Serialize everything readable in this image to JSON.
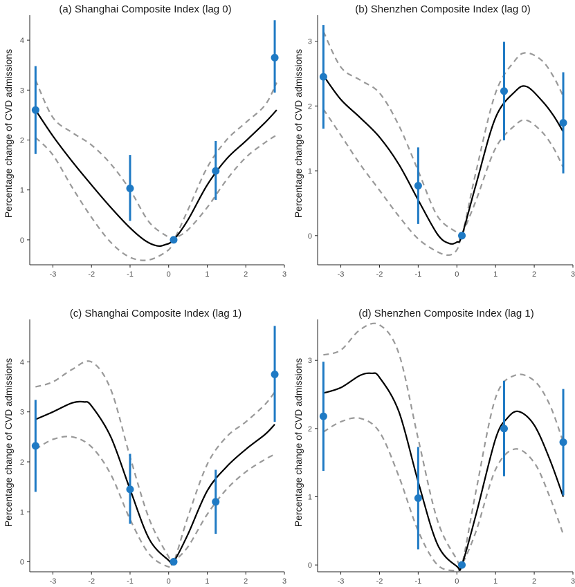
{
  "colors": {
    "fit": "#000000",
    "ci": "#999999",
    "point": "#1f7ac4",
    "axis": "#222222"
  },
  "chart_data": [
    {
      "type": "line",
      "title": "(a) Shanghai Composite Index (lag 0)",
      "ylabel": "Percentage change of CVD admissions",
      "xlim": [
        -3.6,
        3.0
      ],
      "ylim": [
        -0.5,
        4.5
      ],
      "xticks": [
        -3,
        -2,
        -1,
        0,
        1,
        2,
        3
      ],
      "yticks": [
        0,
        1,
        2,
        3,
        4
      ],
      "fit": {
        "x": [
          -3.45,
          -3.0,
          -2.5,
          -2.0,
          -1.5,
          -1.0,
          -0.6,
          -0.3,
          -0.1,
          0.13,
          0.5,
          1.0,
          1.5,
          2.0,
          2.5,
          2.8
        ],
        "y": [
          2.6,
          2.08,
          1.57,
          1.1,
          0.65,
          0.24,
          -0.02,
          -0.12,
          -0.1,
          0.0,
          0.4,
          1.1,
          1.62,
          1.98,
          2.35,
          2.6
        ]
      },
      "ci_upper": {
        "x": [
          -3.45,
          -3.0,
          -2.5,
          -2.0,
          -1.5,
          -1.0,
          -0.5,
          0.0,
          0.13,
          0.5,
          1.0,
          1.5,
          2.0,
          2.5,
          2.8
        ],
        "y": [
          3.2,
          2.45,
          2.15,
          1.9,
          1.52,
          1.0,
          0.35,
          0.05,
          0.0,
          0.6,
          1.45,
          2.0,
          2.35,
          2.7,
          3.15
        ]
      },
      "ci_lower": {
        "x": [
          -3.45,
          -3.0,
          -2.5,
          -2.0,
          -1.5,
          -1.0,
          -0.5,
          0.0,
          0.13,
          0.5,
          1.0,
          1.5,
          2.0,
          2.5,
          2.8
        ],
        "y": [
          2.05,
          1.7,
          1.05,
          0.45,
          -0.05,
          -0.35,
          -0.4,
          -0.2,
          0.0,
          0.2,
          0.65,
          1.2,
          1.65,
          1.95,
          2.1
        ]
      },
      "points": [
        {
          "x": -3.45,
          "y": 2.6,
          "lo": 1.72,
          "hi": 3.48
        },
        {
          "x": -1.0,
          "y": 1.03,
          "lo": 0.38,
          "hi": 1.7
        },
        {
          "x": 0.13,
          "y": 0.0,
          "lo": 0.0,
          "hi": 0.0
        },
        {
          "x": 1.22,
          "y": 1.38,
          "lo": 0.8,
          "hi": 1.98
        },
        {
          "x": 2.75,
          "y": 3.65,
          "lo": 2.95,
          "hi": 4.4
        }
      ]
    },
    {
      "type": "line",
      "title": "(b) Shenzhen Composite Index  (lag 0)",
      "ylabel": "Percentage change of CVD admissions",
      "xlim": [
        -3.6,
        3.0
      ],
      "ylim": [
        -0.45,
        3.4
      ],
      "xticks": [
        -3,
        -2,
        -1,
        0,
        1,
        2,
        3
      ],
      "yticks": [
        0,
        1,
        2,
        3
      ],
      "fit": {
        "x": [
          -3.45,
          -3.0,
          -2.5,
          -2.0,
          -1.5,
          -1.0,
          -0.5,
          -0.2,
          0.0,
          0.13,
          0.5,
          1.0,
          1.5,
          1.8,
          2.2,
          2.5,
          2.75
        ],
        "y": [
          2.47,
          2.1,
          1.82,
          1.52,
          1.1,
          0.55,
          0.02,
          -0.12,
          -0.1,
          0.0,
          0.8,
          1.82,
          2.22,
          2.3,
          2.08,
          1.85,
          1.6
        ]
      },
      "ci_upper": {
        "x": [
          -3.45,
          -3.0,
          -2.5,
          -2.0,
          -1.5,
          -1.0,
          -0.5,
          0.0,
          0.13,
          0.5,
          1.0,
          1.5,
          1.8,
          2.2,
          2.5,
          2.75
        ],
        "y": [
          3.15,
          2.6,
          2.4,
          2.2,
          1.7,
          1.0,
          0.3,
          0.05,
          0.0,
          1.0,
          2.2,
          2.7,
          2.82,
          2.7,
          2.45,
          2.15
        ]
      },
      "ci_lower": {
        "x": [
          -3.45,
          -3.0,
          -2.5,
          -2.0,
          -1.5,
          -1.0,
          -0.5,
          -0.2,
          0.0,
          0.13,
          0.5,
          1.0,
          1.5,
          1.8,
          2.2,
          2.5,
          2.75
        ],
        "y": [
          1.95,
          1.55,
          1.1,
          0.7,
          0.3,
          -0.05,
          -0.25,
          -0.3,
          -0.22,
          0.0,
          0.55,
          1.35,
          1.7,
          1.78,
          1.6,
          1.35,
          1.05
        ]
      },
      "points": [
        {
          "x": -3.45,
          "y": 2.45,
          "lo": 1.65,
          "hi": 3.25
        },
        {
          "x": -1.0,
          "y": 0.77,
          "lo": 0.18,
          "hi": 1.36
        },
        {
          "x": 0.13,
          "y": 0.0,
          "lo": 0.0,
          "hi": 0.0
        },
        {
          "x": 1.22,
          "y": 2.23,
          "lo": 1.47,
          "hi": 2.99
        },
        {
          "x": 2.75,
          "y": 1.74,
          "lo": 0.96,
          "hi": 2.52
        }
      ]
    },
    {
      "type": "line",
      "title": "(c) Shanghai Composite Index (lag 1)",
      "ylabel": "Percentage change of CVD admissions",
      "xlim": [
        -3.6,
        3.0
      ],
      "ylim": [
        -0.2,
        4.85
      ],
      "xticks": [
        -3,
        -2,
        -1,
        0,
        1,
        2,
        3
      ],
      "yticks": [
        0,
        1,
        2,
        3,
        4
      ],
      "fit": {
        "x": [
          -3.45,
          -3.0,
          -2.5,
          -2.2,
          -2.0,
          -1.5,
          -1.0,
          -0.5,
          0.0,
          0.13,
          0.5,
          1.0,
          1.5,
          2.0,
          2.5,
          2.75
        ],
        "y": [
          2.85,
          3.0,
          3.18,
          3.2,
          3.12,
          2.5,
          1.45,
          0.45,
          0.03,
          0.0,
          0.55,
          1.42,
          1.9,
          2.25,
          2.55,
          2.75
        ]
      },
      "ci_upper": {
        "x": [
          -3.45,
          -3.0,
          -2.5,
          -2.0,
          -1.5,
          -1.0,
          -0.5,
          0.0,
          0.13,
          0.5,
          1.0,
          1.5,
          2.0,
          2.5,
          2.75
        ],
        "y": [
          3.5,
          3.6,
          3.85,
          4.0,
          3.45,
          2.1,
          0.85,
          0.1,
          0.0,
          0.9,
          1.95,
          2.5,
          2.8,
          3.15,
          3.4
        ]
      },
      "ci_lower": {
        "x": [
          -3.45,
          -3.0,
          -2.5,
          -2.0,
          -1.5,
          -1.0,
          -0.5,
          0.0,
          0.13,
          0.5,
          1.0,
          1.5,
          2.0,
          2.5,
          2.75
        ],
        "y": [
          2.25,
          2.45,
          2.5,
          2.3,
          1.75,
          0.85,
          0.15,
          -0.1,
          0.0,
          0.3,
          0.95,
          1.45,
          1.8,
          2.05,
          2.15
        ]
      },
      "points": [
        {
          "x": -3.45,
          "y": 2.32,
          "lo": 1.4,
          "hi": 3.24
        },
        {
          "x": -1.0,
          "y": 1.45,
          "lo": 0.76,
          "hi": 2.16
        },
        {
          "x": 0.13,
          "y": 0.0,
          "lo": 0.0,
          "hi": 0.0
        },
        {
          "x": 1.22,
          "y": 1.2,
          "lo": 0.56,
          "hi": 1.84
        },
        {
          "x": 2.75,
          "y": 3.75,
          "lo": 2.8,
          "hi": 4.72
        }
      ]
    },
    {
      "type": "line",
      "title": "(d) Shenzhen Composite Index (lag 1)",
      "ylabel": "Percentage change of CVD admissions",
      "xlim": [
        -3.6,
        3.0
      ],
      "ylim": [
        -0.1,
        3.6
      ],
      "xticks": [
        -3,
        -2,
        -1,
        0,
        1,
        2,
        3
      ],
      "yticks": [
        0,
        1,
        2,
        3
      ],
      "fit": {
        "x": [
          -3.45,
          -3.0,
          -2.5,
          -2.2,
          -2.0,
          -1.5,
          -1.0,
          -0.5,
          0.0,
          0.13,
          0.5,
          1.0,
          1.3,
          1.6,
          2.0,
          2.4,
          2.75
        ],
        "y": [
          2.52,
          2.6,
          2.78,
          2.81,
          2.75,
          2.25,
          1.22,
          0.3,
          -0.02,
          0.0,
          0.75,
          1.85,
          2.15,
          2.25,
          2.05,
          1.55,
          1.0
        ]
      },
      "ci_upper": {
        "x": [
          -3.45,
          -3.0,
          -2.5,
          -2.0,
          -1.5,
          -1.0,
          -0.5,
          0.0,
          0.13,
          0.5,
          1.0,
          1.5,
          2.0,
          2.4,
          2.75
        ],
        "y": [
          3.08,
          3.15,
          3.45,
          3.52,
          3.1,
          1.85,
          0.65,
          0.08,
          0.0,
          1.1,
          2.45,
          2.78,
          2.7,
          2.35,
          1.8
        ]
      },
      "ci_lower": {
        "x": [
          -3.45,
          -3.0,
          -2.5,
          -2.0,
          -1.5,
          -1.0,
          -0.5,
          0.0,
          0.13,
          0.5,
          1.0,
          1.5,
          2.0,
          2.4,
          2.75
        ],
        "y": [
          1.95,
          2.1,
          2.15,
          1.95,
          1.3,
          0.5,
          0.0,
          -0.08,
          0.0,
          0.5,
          1.4,
          1.7,
          1.5,
          1.0,
          0.45
        ]
      },
      "points": [
        {
          "x": -3.45,
          "y": 2.18,
          "lo": 1.38,
          "hi": 2.98
        },
        {
          "x": -1.0,
          "y": 0.98,
          "lo": 0.23,
          "hi": 1.73
        },
        {
          "x": 0.13,
          "y": 0.0,
          "lo": 0.0,
          "hi": 0.0
        },
        {
          "x": 1.22,
          "y": 2.0,
          "lo": 1.3,
          "hi": 2.7
        },
        {
          "x": 2.75,
          "y": 1.8,
          "lo": 1.02,
          "hi": 2.58
        }
      ]
    }
  ]
}
